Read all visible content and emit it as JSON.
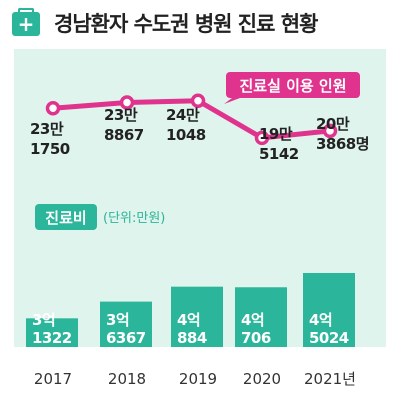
{
  "header": {
    "title": "경남환자 수도권 병원 진료 현황",
    "icon": "plus-icon",
    "icon_glyph": "+"
  },
  "colors": {
    "bar": "#2bb59a",
    "line": "#e0338e",
    "panel": "#dff4ed",
    "title_icon": "#2bb59a"
  },
  "chart_data": [
    {
      "type": "line",
      "series_tag": "진료실 이용 인원",
      "x": [
        "2017",
        "2018",
        "2019",
        "2020",
        "2021"
      ],
      "values": [
        231750,
        238867,
        241048,
        195142,
        203868
      ],
      "data_labels": [
        [
          "23만",
          "1750"
        ],
        [
          "23만",
          "8867"
        ],
        [
          "24만",
          "1048"
        ],
        [
          "19만",
          "5142"
        ],
        [
          "20만",
          "3868명"
        ]
      ]
    },
    {
      "type": "bar",
      "series_tag": "진료비",
      "unit": "(단위:만원)",
      "categories": [
        "2017",
        "2018",
        "2019",
        "2020",
        "2021년"
      ],
      "values": [
        31322,
        36367,
        40884,
        40706,
        45024
      ],
      "data_labels": [
        [
          "3억",
          "1322"
        ],
        [
          "3억",
          "6367"
        ],
        [
          "4억",
          "884"
        ],
        [
          "4억",
          "706"
        ],
        [
          "4억",
          "5024"
        ]
      ]
    }
  ]
}
